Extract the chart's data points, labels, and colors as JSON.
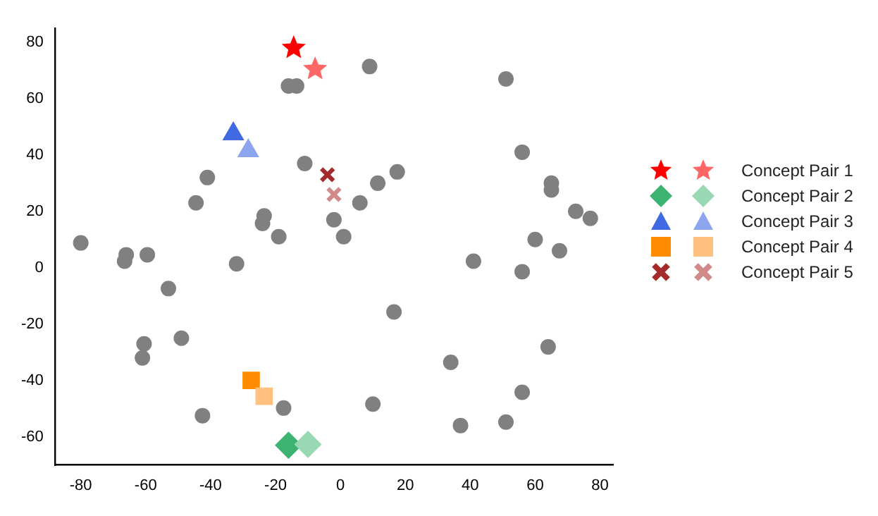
{
  "chart_data": {
    "type": "scatter",
    "xlim": [
      -88,
      84
    ],
    "ylim": [
      -70,
      85
    ],
    "xticks": [
      -80,
      -60,
      -40,
      -20,
      0,
      20,
      40,
      60,
      80
    ],
    "yticks": [
      -60,
      -40,
      -20,
      0,
      20,
      40,
      60,
      80
    ],
    "grid": false,
    "legend": "right",
    "series": [
      {
        "color": "#808080",
        "marker": "circle",
        "x": [
          -80,
          -66,
          -66.5,
          -59.5,
          -53,
          -49,
          -60.5,
          -61,
          -42.5,
          -32,
          -41,
          -44.5,
          -23.5,
          -24,
          -19,
          -16,
          -13.5,
          -11,
          -2,
          1,
          6,
          11.5,
          17.5,
          9,
          51,
          56,
          65,
          65,
          72.5,
          77,
          60,
          67.5,
          41,
          56,
          16.5,
          34,
          64,
          56,
          51,
          37,
          10,
          -17.5
        ],
        "values": [
          8.8,
          4.6,
          2.3,
          4.6,
          -7.4,
          -25,
          -27,
          -32,
          -52.5,
          1.4,
          32,
          23,
          18.4,
          15.7,
          11,
          64.5,
          64.5,
          37,
          17,
          11,
          23,
          30,
          34,
          71.4,
          67,
          41,
          30,
          27.6,
          20,
          17.5,
          10,
          6,
          2.3,
          -1.4,
          -15.7,
          -33.6,
          -28.1,
          -44.2,
          -54.8,
          -56,
          -48.4,
          -49.8
        ]
      },
      {
        "name": "Concept Pair 1",
        "marker": "star",
        "colors": [
          "#ff0000",
          "#ff6666"
        ],
        "x": [
          -14.4,
          -7.8
        ],
        "values": [
          78,
          70.5
        ]
      },
      {
        "name": "Concept Pair 2",
        "marker": "diamond",
        "colors": [
          "#3cb371",
          "#98d9b4"
        ],
        "x": [
          -16,
          -10
        ],
        "values": [
          -63,
          -62.7
        ]
      },
      {
        "name": "Concept Pair 3",
        "marker": "triangle",
        "colors": [
          "#4169e1",
          "#8da5ee"
        ],
        "x": [
          -33,
          -28.4
        ],
        "values": [
          47.5,
          41.5
        ]
      },
      {
        "name": "Concept Pair 4",
        "marker": "square",
        "colors": [
          "#ff8c00",
          "#ffc080"
        ],
        "x": [
          -27.5,
          -23.5
        ],
        "values": [
          -40,
          -45.6
        ]
      },
      {
        "name": "Concept Pair 5",
        "marker": "cross",
        "colors": [
          "#a52a2a",
          "#d08a8a"
        ],
        "x": [
          -4,
          -2
        ],
        "values": [
          33,
          26
        ]
      }
    ]
  }
}
